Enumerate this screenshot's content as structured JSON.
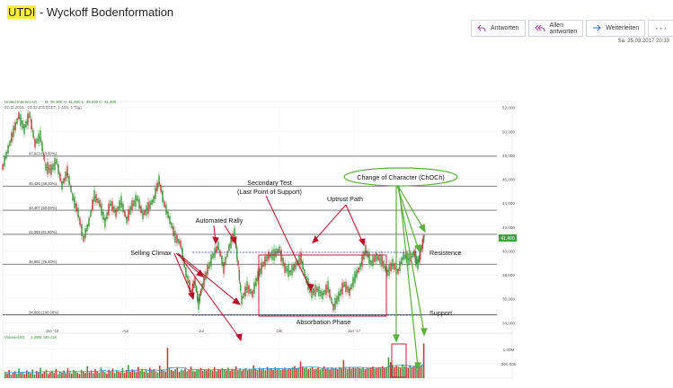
{
  "header": {
    "subject_highlight": "UTDI",
    "subject_rest": " - Wyckoff Bodenformation",
    "reply_label": "Antworten",
    "reply_all_label": "Allen antworten",
    "forward_label": "Weiterleiten",
    "more_label": "···",
    "date": "Sa. 25.03.2017 20:33"
  },
  "colors": {
    "accent": "#3f51b5",
    "rectangle": "#c21f3a",
    "arrow_red": "#b5122a",
    "arrow_green": "#5cae3e",
    "price_tag": "#3fa13a"
  },
  "icons": {
    "reply": "reply-icon",
    "reply_all": "reply-all-icon",
    "forward": "forward-icon"
  },
  "chart_meta": {
    "instrument": "United Internet AG",
    "ohlc": "O: 39,300  H: 41,600  L: 39,000  C: 41,400",
    "period": "02.11.2015 - 24.03.2017",
    "settings": "(CET, 1 Jahr, 1 Tag)",
    "volume_label": "Volume(20)",
    "volume_values": "1,28M   449,42k",
    "last_price": "41,400"
  },
  "chart_data": {
    "type": "line",
    "title": "",
    "x_ticks": [
      "Jan '16",
      "Apr",
      "Jul",
      "Okt",
      "Jan '17"
    ],
    "y_ticks": [
      "34,000",
      "36,000",
      "38,000",
      "40,000",
      "42,000",
      "44,000",
      "46,000",
      "48,000",
      "50,000",
      "52,000"
    ],
    "ylim": [
      33.5,
      52.5
    ],
    "fib_levels": [
      {
        "label": "34,666 (100.00%)",
        "value": 34.666
      },
      {
        "label": "38,892 (76.40%)",
        "value": 38.892
      },
      {
        "label": "41,389 (61.80%)",
        "value": 41.389
      },
      {
        "label": "43,407 (50.00%)",
        "value": 43.407
      },
      {
        "label": "45,425 (38.20%)",
        "value": 45.425
      },
      {
        "label": "47,923 (23.60%)",
        "value": 47.923
      }
    ],
    "price_series": [
      {
        "x": 0,
        "y": 47.0
      },
      {
        "x": 6,
        "y": 48.5
      },
      {
        "x": 12,
        "y": 50.0
      },
      {
        "x": 18,
        "y": 51.3
      },
      {
        "x": 24,
        "y": 50.2
      },
      {
        "x": 30,
        "y": 51.4
      },
      {
        "x": 36,
        "y": 49.0
      },
      {
        "x": 42,
        "y": 49.6
      },
      {
        "x": 48,
        "y": 47.0
      },
      {
        "x": 54,
        "y": 46.8
      },
      {
        "x": 60,
        "y": 47.5
      },
      {
        "x": 66,
        "y": 45.5
      },
      {
        "x": 72,
        "y": 46.6
      },
      {
        "x": 78,
        "y": 44.5
      },
      {
        "x": 84,
        "y": 43.2
      },
      {
        "x": 90,
        "y": 41.0
      },
      {
        "x": 96,
        "y": 42.4
      },
      {
        "x": 102,
        "y": 44.6
      },
      {
        "x": 108,
        "y": 44.0
      },
      {
        "x": 114,
        "y": 42.4
      },
      {
        "x": 120,
        "y": 44.0
      },
      {
        "x": 126,
        "y": 43.2
      },
      {
        "x": 132,
        "y": 44.1
      },
      {
        "x": 138,
        "y": 42.6
      },
      {
        "x": 144,
        "y": 43.8
      },
      {
        "x": 150,
        "y": 44.4
      },
      {
        "x": 156,
        "y": 43.0
      },
      {
        "x": 162,
        "y": 43.6
      },
      {
        "x": 168,
        "y": 44.3
      },
      {
        "x": 174,
        "y": 45.9
      },
      {
        "x": 180,
        "y": 43.9
      },
      {
        "x": 186,
        "y": 42.6
      },
      {
        "x": 192,
        "y": 41.2
      },
      {
        "x": 198,
        "y": 40.6
      },
      {
        "x": 204,
        "y": 38.2
      },
      {
        "x": 210,
        "y": 36.5
      },
      {
        "x": 214,
        "y": 37.5
      },
      {
        "x": 218,
        "y": 35.6
      },
      {
        "x": 222,
        "y": 37.0
      },
      {
        "x": 228,
        "y": 38.4
      },
      {
        "x": 234,
        "y": 39.6
      },
      {
        "x": 240,
        "y": 40.4
      },
      {
        "x": 246,
        "y": 38.6
      },
      {
        "x": 252,
        "y": 40.3
      },
      {
        "x": 258,
        "y": 41.5
      },
      {
        "x": 262,
        "y": 39.0
      },
      {
        "x": 266,
        "y": 35.9
      },
      {
        "x": 272,
        "y": 37.0
      },
      {
        "x": 278,
        "y": 36.4
      },
      {
        "x": 284,
        "y": 37.9
      },
      {
        "x": 290,
        "y": 38.9
      },
      {
        "x": 296,
        "y": 39.6
      },
      {
        "x": 302,
        "y": 39.7
      },
      {
        "x": 308,
        "y": 40.1
      },
      {
        "x": 314,
        "y": 38.6
      },
      {
        "x": 320,
        "y": 38.2
      },
      {
        "x": 326,
        "y": 38.8
      },
      {
        "x": 332,
        "y": 39.4
      },
      {
        "x": 338,
        "y": 37.6
      },
      {
        "x": 344,
        "y": 36.5
      },
      {
        "x": 350,
        "y": 36.8
      },
      {
        "x": 356,
        "y": 36.3
      },
      {
        "x": 362,
        "y": 37.0
      },
      {
        "x": 368,
        "y": 35.3
      },
      {
        "x": 374,
        "y": 36.2
      },
      {
        "x": 380,
        "y": 37.2
      },
      {
        "x": 386,
        "y": 36.6
      },
      {
        "x": 392,
        "y": 37.8
      },
      {
        "x": 398,
        "y": 38.7
      },
      {
        "x": 404,
        "y": 40.1
      },
      {
        "x": 410,
        "y": 39.0
      },
      {
        "x": 416,
        "y": 39.5
      },
      {
        "x": 422,
        "y": 39.2
      },
      {
        "x": 428,
        "y": 38.2
      },
      {
        "x": 434,
        "y": 38.9
      },
      {
        "x": 440,
        "y": 38.3
      },
      {
        "x": 446,
        "y": 39.6
      },
      {
        "x": 452,
        "y": 39.3
      },
      {
        "x": 458,
        "y": 39.8
      },
      {
        "x": 462,
        "y": 38.9
      },
      {
        "x": 466,
        "y": 40.2
      },
      {
        "x": 470,
        "y": 41.4
      }
    ],
    "volume": {
      "ylim": [
        0,
        1.4
      ],
      "ticks": [
        "1,00M",
        "500,00k"
      ],
      "bars": [
        0.21,
        0.16,
        0.28,
        0.12,
        0.19,
        0.24,
        0.15,
        0.33,
        0.18,
        0.22,
        0.14,
        0.27,
        0.2,
        0.17,
        0.3,
        0.13,
        0.25,
        0.19,
        0.36,
        0.16,
        0.22,
        0.29,
        0.15,
        0.2,
        0.26,
        0.18,
        0.31,
        0.14,
        0.23,
        0.19,
        0.27,
        0.17,
        0.34,
        0.21,
        0.16,
        0.28,
        0.24,
        0.19,
        0.15,
        0.29,
        0.22,
        0.18,
        0.42,
        0.2,
        0.26,
        0.17,
        0.31,
        0.23,
        0.19,
        0.38,
        0.25,
        0.21,
        0.16,
        0.29,
        0.24,
        0.33,
        0.18,
        0.27,
        0.22,
        0.2,
        0.35,
        0.19,
        0.28,
        0.45,
        0.23,
        0.3,
        0.26,
        0.21,
        0.39,
        0.25,
        0.32,
        0.22,
        0.28,
        0.19,
        0.36,
        0.27,
        0.31,
        0.24,
        0.2,
        0.43,
        0.29,
        0.26,
        0.23,
        1.05,
        0.34,
        0.28,
        0.25,
        0.31,
        0.37,
        0.22,
        0.3,
        0.27,
        0.33,
        0.24,
        0.29,
        0.4,
        0.26,
        0.23,
        0.31,
        0.28,
        0.35,
        0.25,
        0.3,
        0.27,
        0.33,
        0.29,
        0.26,
        0.38,
        0.24,
        0.31,
        0.28,
        0.34,
        0.3,
        0.27,
        0.36,
        0.25,
        0.32,
        0.29,
        0.41,
        0.28,
        0.33,
        0.26,
        0.3,
        0.35,
        0.27,
        0.31,
        0.29,
        0.44,
        0.32,
        0.28,
        0.36,
        0.3,
        0.34,
        0.27,
        0.39,
        0.31,
        0.33,
        0.29,
        0.37,
        0.3,
        0.35,
        0.28,
        0.32,
        0.36,
        0.3,
        0.34,
        0.31,
        0.38,
        0.42,
        0.33,
        0.36,
        0.58,
        0.4,
        0.35,
        0.37,
        0.32,
        0.34,
        0.39,
        0.31,
        0.33,
        0.36,
        0.3,
        0.34,
        0.41,
        0.32,
        0.35,
        0.3,
        0.37,
        0.33,
        0.36,
        0.31,
        0.38,
        0.34,
        0.63,
        0.35,
        0.32,
        0.37,
        0.33,
        0.36,
        0.34,
        0.39,
        0.35,
        0.33,
        0.38,
        0.31,
        0.36,
        0.34,
        0.37,
        0.4,
        0.33,
        0.35,
        0.38,
        0.36,
        0.41,
        0.34,
        0.39,
        0.72,
        0.55,
        0.46,
        0.38,
        0.43,
        0.4,
        0.37,
        0.48,
        0.42,
        0.39,
        0.36,
        0.45,
        0.38,
        0.41,
        0.52,
        0.44,
        0.4,
        0.47,
        1.2
      ]
    },
    "annotations": [
      "Change of Character (ChOCh)",
      "Secondary Test",
      "(Last Point of Support)",
      "Uptrust Path",
      "Automated Rally",
      "Selling Climax",
      "Resistence",
      "Absorbation Phase",
      "Support"
    ]
  }
}
